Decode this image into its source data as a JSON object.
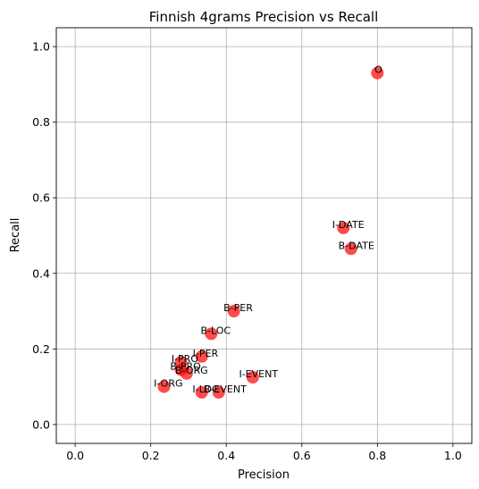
{
  "chart_data": {
    "type": "scatter",
    "title": "Finnish 4grams Precision vs Recall",
    "xlabel": "Precision",
    "ylabel": "Recall",
    "xlim": [
      -0.05,
      1.05
    ],
    "ylim": [
      -0.05,
      1.05
    ],
    "xticks": [
      "0.0",
      "0.2",
      "0.4",
      "0.6",
      "0.8",
      "1.0"
    ],
    "yticks": [
      "0.0",
      "0.2",
      "0.4",
      "0.6",
      "0.8",
      "1.0"
    ],
    "grid": true,
    "point_color": "#ff0000",
    "point_alpha": 0.7,
    "points": [
      {
        "label": "O",
        "x": 0.8,
        "y": 0.93
      },
      {
        "label": "I-DATE",
        "x": 0.71,
        "y": 0.52
      },
      {
        "label": "B-DATE",
        "x": 0.73,
        "y": 0.465
      },
      {
        "label": "B-PER",
        "x": 0.42,
        "y": 0.3
      },
      {
        "label": "B-LOC",
        "x": 0.36,
        "y": 0.24
      },
      {
        "label": "I-PRO",
        "x": 0.28,
        "y": 0.165
      },
      {
        "label": "I-PER",
        "x": 0.335,
        "y": 0.18
      },
      {
        "label": "B-PRO",
        "x": 0.28,
        "y": 0.145
      },
      {
        "label": "B-ORG",
        "x": 0.295,
        "y": 0.135
      },
      {
        "label": "I-EVENT",
        "x": 0.47,
        "y": 0.125
      },
      {
        "label": "I-ORG",
        "x": 0.235,
        "y": 0.1
      },
      {
        "label": "B-EVENT",
        "x": 0.38,
        "y": 0.085
      },
      {
        "label": "I-LOC",
        "x": 0.335,
        "y": 0.085
      }
    ]
  }
}
